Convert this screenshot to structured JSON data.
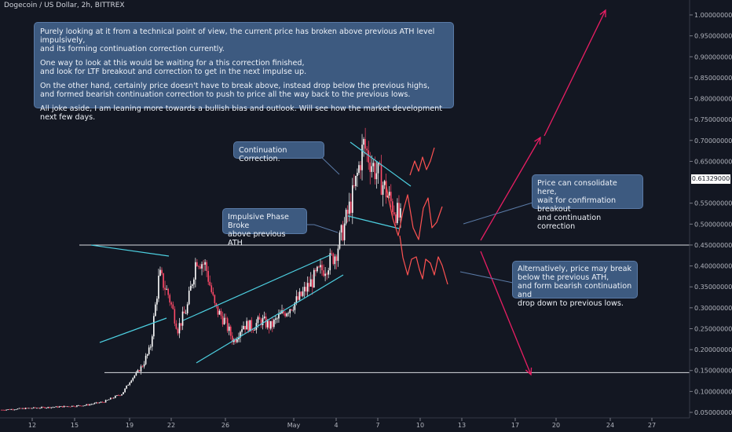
{
  "symbol_title": "Dogecoin / US Dollar, 2h, BITTREX",
  "chart_data": {
    "type": "candlestick",
    "symbol": "Dogecoin / US Dollar",
    "interval": "2h",
    "exchange": "BITTREX",
    "y_ticks": [
      "1.00000000",
      "0.95000000",
      "0.90000000",
      "0.85000000",
      "0.80000000",
      "0.75000000",
      "0.70000000",
      "0.65000000",
      "0.55000000",
      "0.50000000",
      "0.45000000",
      "0.40000000",
      "0.35000000",
      "0.30000000",
      "0.25000000",
      "0.20000000",
      "0.15000000",
      "0.10000000",
      "0.05000000"
    ],
    "y_range": [
      0.04,
      1.03
    ],
    "x_ticks": [
      "12",
      "15",
      "19",
      "22",
      "26",
      "May",
      "4",
      "7",
      "10",
      "13",
      "17",
      "20",
      "24",
      "27"
    ],
    "current_price": "0.61329000",
    "price_path": [
      [
        0,
        0.056
      ],
      [
        3,
        0.06
      ],
      [
        6,
        0.063
      ],
      [
        9,
        0.067
      ],
      [
        11,
        0.075
      ],
      [
        13,
        0.095
      ],
      [
        14,
        0.13
      ],
      [
        15,
        0.155
      ],
      [
        16,
        0.2
      ],
      [
        17,
        0.38
      ],
      [
        18,
        0.33
      ],
      [
        19,
        0.25
      ],
      [
        20,
        0.3
      ],
      [
        21,
        0.42
      ],
      [
        22,
        0.4
      ],
      [
        23,
        0.3
      ],
      [
        24,
        0.27
      ],
      [
        25,
        0.22
      ],
      [
        26,
        0.26
      ],
      [
        27,
        0.255
      ],
      [
        28,
        0.27
      ],
      [
        29,
        0.255
      ],
      [
        30,
        0.28
      ],
      [
        31,
        0.3
      ],
      [
        32,
        0.32
      ],
      [
        33,
        0.35
      ],
      [
        34,
        0.38
      ],
      [
        35,
        0.4
      ],
      [
        36,
        0.43
      ],
      [
        37,
        0.5
      ],
      [
        38,
        0.58
      ],
      [
        39,
        0.69
      ],
      [
        40,
        0.64
      ],
      [
        41,
        0.6
      ],
      [
        42,
        0.55
      ],
      [
        43,
        0.51
      ]
    ],
    "key_levels": [
      {
        "label": "previous ATH",
        "value": 0.45
      },
      {
        "label": "previous lows",
        "value": 0.145
      }
    ]
  },
  "callouts": {
    "main": {
      "paragraphs": [
        "Purely looking at it from a technical point of view, the current price has broken above previous ATH level impulsively,\nand its forming continuation correction currently.",
        "One way to look at this would be waiting for a this correction finished,\nand look for LTF breakout and correction to get in the next impulse up.",
        "On the other hand, certainly price doesn't have to break above, instead drop below the previous highs,\nand formed bearish continuation correction to push to price all the way back to the previous lows.",
        "All joke aside, I am leaning more towards a bullish bias and outlook. Will see how the market development next few days."
      ]
    },
    "continuation": "Continuation Correction.",
    "impulsive": "Impulsive Phase Broke\nabove previous ATH",
    "consolidate": "Price can consolidate here,\nwait for confirmation breakout\nand continuation correction",
    "alternative": "Alternatively, price may break\nbelow the previous ATH,\nand form bearish continuation and\ndrop down to previous lows."
  },
  "colors": {
    "background": "#131722",
    "up": "#ffffff",
    "down": "#ff4a68",
    "trendline": "#4dd0e1",
    "projection": "#ff5252",
    "arrow": "#e91e63",
    "level": "#d9dbe0",
    "callout": "#3d5a80"
  }
}
